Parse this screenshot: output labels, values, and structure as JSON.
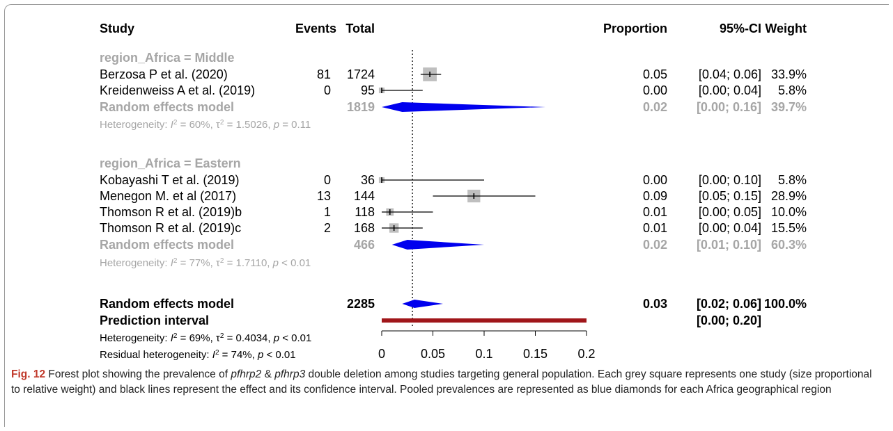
{
  "headers": {
    "study": "Study",
    "events": "Events",
    "total": "Total",
    "proportion": "Proportion",
    "ci": "95%-CI",
    "weight": "Weight"
  },
  "colors": {
    "diamond": "#0000ee",
    "box": "#bfbfbf",
    "prediction": "#a0161a",
    "subgroup_text": "#a6a6a6"
  },
  "chart_data": {
    "type": "forest",
    "xlim": [
      0,
      0.2
    ],
    "x_ticks": [
      "0",
      "0.05",
      "0.1",
      "0.15",
      "0.2"
    ],
    "x_tick_values": [
      0,
      0.05,
      0.1,
      0.15,
      0.2
    ],
    "reference_line": 0.03,
    "subgroups": [
      {
        "label": "region_Africa = Middle",
        "studies": [
          {
            "name": "Berzosa P et al. (2020)",
            "events": "81",
            "total": "1724",
            "est": 0.047,
            "lo": 0.038,
            "hi": 0.058,
            "prop": "0.05",
            "ci": "[0.04; 0.06]",
            "weight": "33.9%",
            "w": 33.9
          },
          {
            "name": "Kreidenweiss A et al. (2019)",
            "events": "0",
            "total": "95",
            "est": 0.0,
            "lo": 0.0,
            "hi": 0.04,
            "prop": "0.00",
            "ci": "[0.00; 0.04]",
            "weight": "5.8%",
            "w": 5.8
          }
        ],
        "pooled": {
          "label": "Random effects model",
          "total": "1819",
          "est": 0.02,
          "lo": 0.0,
          "hi": 0.16,
          "pi_hi": 0.16,
          "prop": "0.02",
          "ci": "[0.00; 0.16]",
          "weight": "39.7%"
        },
        "het_prefix": "Heterogeneity: ",
        "het_i": "I",
        "het_i_val": " = 60%, ",
        "het_tau": "τ",
        "het_tau_val": " = 1.5026, ",
        "het_p": "p",
        "het_p_val": " = 0.11"
      },
      {
        "label": "region_Africa = Eastern",
        "studies": [
          {
            "name": "Kobayashi T et al. (2019)",
            "events": "0",
            "total": "36",
            "est": 0.0,
            "lo": 0.0,
            "hi": 0.1,
            "prop": "0.00",
            "ci": "[0.00; 0.10]",
            "weight": "5.8%",
            "w": 5.8
          },
          {
            "name": "Menegon M. et al (2017)",
            "events": "13",
            "total": "144",
            "est": 0.09,
            "lo": 0.05,
            "hi": 0.15,
            "prop": "0.09",
            "ci": "[0.05; 0.15]",
            "weight": "28.9%",
            "w": 28.9
          },
          {
            "name": "Thomson R et al. (2019)b",
            "events": "1",
            "total": "118",
            "est": 0.008,
            "lo": 0.0,
            "hi": 0.05,
            "prop": "0.01",
            "ci": "[0.00; 0.05]",
            "weight": "10.0%",
            "w": 10.0
          },
          {
            "name": "Thomson R et al. (2019)c",
            "events": "2",
            "total": "168",
            "est": 0.012,
            "lo": 0.0,
            "hi": 0.04,
            "prop": "0.01",
            "ci": "[0.00; 0.04]",
            "weight": "15.5%",
            "w": 15.5
          }
        ],
        "pooled": {
          "label": "Random effects model",
          "total": "466",
          "est": 0.025,
          "lo": 0.01,
          "hi": 0.1,
          "prop": "0.02",
          "ci": "[0.01; 0.10]",
          "weight": "60.3%"
        },
        "het_prefix": "Heterogeneity: ",
        "het_i": "I",
        "het_i_val": " = 77%, ",
        "het_tau": "τ",
        "het_tau_val": " = 1.7110, ",
        "het_p": "p",
        "het_p_val": " < 0.01"
      }
    ],
    "overall": {
      "label": "Random effects model",
      "total": "2285",
      "est": 0.032,
      "lo": 0.02,
      "hi": 0.06,
      "prop": "0.03",
      "ci": "[0.02; 0.06]",
      "weight": "100.0%"
    },
    "prediction": {
      "label": "Prediction interval",
      "lo": 0.0,
      "hi": 0.2,
      "ci": "[0.00; 0.20]"
    },
    "overall_het": {
      "prefix": "Heterogeneity: ",
      "i": "I",
      "i_val": " = 69%, ",
      "tau": "τ",
      "tau_val": " = 0.4034, ",
      "p": "p",
      "p_val": " < 0.01"
    },
    "residual_het": {
      "prefix": "Residual heterogeneity: ",
      "i": "I",
      "i_val": " = 74%, ",
      "p": "p",
      "p_val": " < 0.01"
    }
  },
  "caption": {
    "fig_label": "Fig. 12",
    "part1": "  Forest plot showing the prevalence of ",
    "gene1": "pfhrp2",
    "amp": " & ",
    "gene2": "pfhrp3",
    "part2": " double deletion among studies targeting general population. Each grey square represents one study (size proportional to relative weight) and black lines represent the effect and its confidence interval. Pooled prevalences are represented as blue diamonds for each Africa geographical region"
  }
}
